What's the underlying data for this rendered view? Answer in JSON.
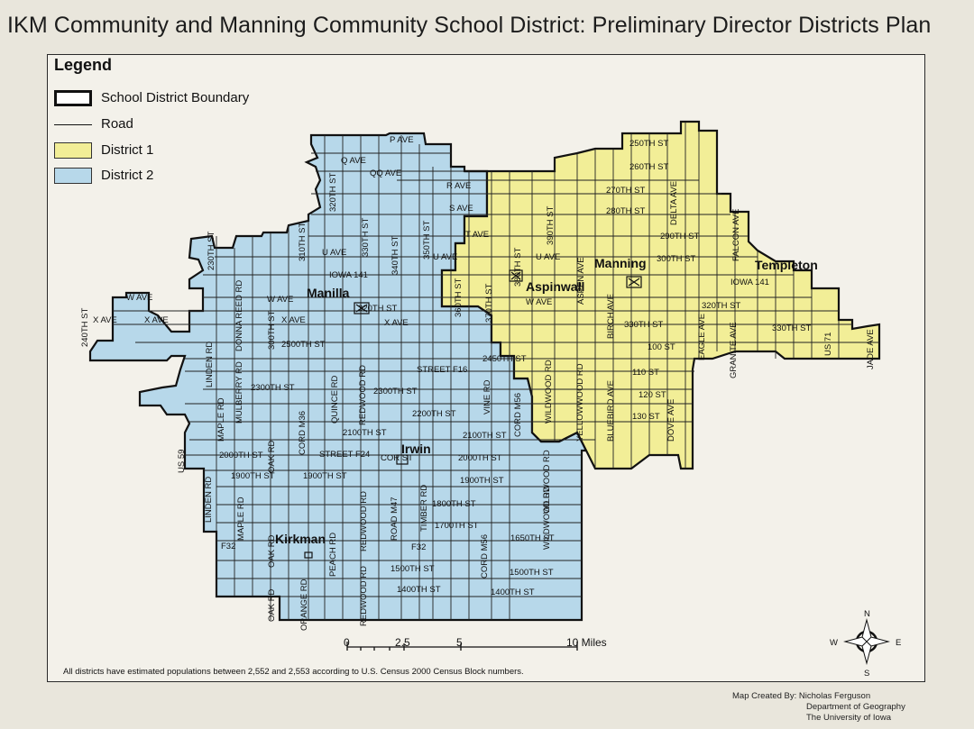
{
  "title": "IKM Community and Manning Community School District: Preliminary Director Districts Plan",
  "legend": {
    "title": "Legend",
    "items": [
      {
        "label": "School District Boundary",
        "symbol": "outline-box"
      },
      {
        "label": "Road",
        "symbol": "line"
      },
      {
        "label": "District 1",
        "symbol": "fill",
        "color": "#f2ee97"
      },
      {
        "label": "District 2",
        "symbol": "fill",
        "color": "#b7d8ea"
      }
    ]
  },
  "colors": {
    "district1": "#f2ee97",
    "district2": "#b7d8ea",
    "boundary": "#111111",
    "road": "#222222",
    "background": "#f3f1ea"
  },
  "towns": [
    "Manilla",
    "Aspinwall",
    "Manning",
    "Templeton",
    "Irwin",
    "Kirkman"
  ],
  "road_labels": {
    "r01": "P AVE",
    "r02": "Q AVE",
    "r03": "QQ AVE",
    "r04": "R AVE",
    "r05": "S AVE",
    "r06": "T AVE",
    "r07": "U AVE",
    "r08": "U AVE",
    "r09": "U AVE",
    "r10": "IOWA 141",
    "r11": "IOWA 141",
    "r12": "W AVE",
    "r13": "W AVE",
    "r14": "W AVE",
    "r15": "X AVE",
    "r16": "X AVE",
    "r17": "X AVE",
    "r18": "X AVE",
    "r19": "2500TH ST",
    "r20": "2450TH ST",
    "r21": "STREET F16",
    "r22": "2300TH ST",
    "r23": "2300TH ST",
    "r24": "2200TH ST",
    "r25": "2100TH ST",
    "r26": "2100TH ST",
    "r27": "2000TH ST",
    "r28": "2000TH ST",
    "r29": "STREET F24",
    "r30": "1900TH ST",
    "r31": "1900TH ST",
    "r32": "1900TH ST",
    "r33": "1800TH ST",
    "r34": "1700TH ST",
    "r35": "1650TH ST",
    "r36": "1500TH ST",
    "r37": "1500TH ST",
    "r38": "1400TH ST",
    "r39": "1400TH ST",
    "r40": "F32",
    "r41": "F32",
    "r42": "250TH ST",
    "r43": "260TH ST",
    "r44": "270TH ST",
    "r45": "280TH ST",
    "r46": "290TH ST",
    "r47": "300TH ST",
    "r48": "320TH ST",
    "r49": "330TH ST",
    "r50": "330TH ST",
    "r51": "100 ST",
    "r52": "110 ST",
    "r53": "120 ST",
    "r54": "130 ST",
    "r55": "US 71",
    "r56": "COR ST",
    "r57": "240TH ST",
    "v01": "310TH ST",
    "v02": "320TH ST",
    "v03": "330TH ST",
    "v04": "340TH ST",
    "v05": "350TH ST",
    "v06": "360TH ST",
    "v07": "370TH ST",
    "v08": "380TH ST",
    "v09": "390TH ST",
    "v10": "ASPEN AVE",
    "v11": "BIRCH AVE",
    "v12": "BLUEBIRD AVE",
    "v13": "DELTA AVE",
    "v14": "DOVE AVE",
    "v15": "EAGLE AVE",
    "v16": "FALCON AVE",
    "v17": "GRANITE AVE",
    "v18": "JADE AVE",
    "v19": "LINDEN RD",
    "v20": "LINDEN RD",
    "v21": "MAPLE RD",
    "v22": "MAPLE RD",
    "v23": "MULBERRY RD",
    "v24": "DONNA REED RD",
    "v25": "300TH ST",
    "v26": "OAK RD",
    "v27": "OAK RD",
    "v28": "OAK RD",
    "v29": "CORD M36",
    "v30": "QUINCE RD",
    "v31": "REDWOOD RD",
    "v32": "REDWOOD RD",
    "v33": "REDWOOD RD",
    "v34": "PEACH RD",
    "v35": "ORANGE RD",
    "v36": "ROAD M47",
    "v37": "TIMBER RD",
    "v38": "CORD M56",
    "v39": "CORD M56",
    "v40": "VINE RD",
    "v41": "WILDWOOD RD",
    "v42": "WILDWOOD RD",
    "v43": "WILDWOOD RD",
    "v44": "YELLOWWOOD RD",
    "v45": "US 59",
    "v46": "240TH ST",
    "v47": "US 71",
    "v48": "230TH ST"
  },
  "scale_bar": {
    "ticks": [
      "0",
      "2.5",
      "5",
      "10 Miles"
    ]
  },
  "compass": {
    "n": "N",
    "s": "S",
    "e": "E",
    "w": "W"
  },
  "footnote": "All districts have estimated populations between 2,552 and 2,553 according to U.S. Census 2000 Census Block numbers.",
  "credit": [
    "Map Created By: Nicholas Ferguson",
    "Department of Geography",
    "The University of Iowa"
  ]
}
